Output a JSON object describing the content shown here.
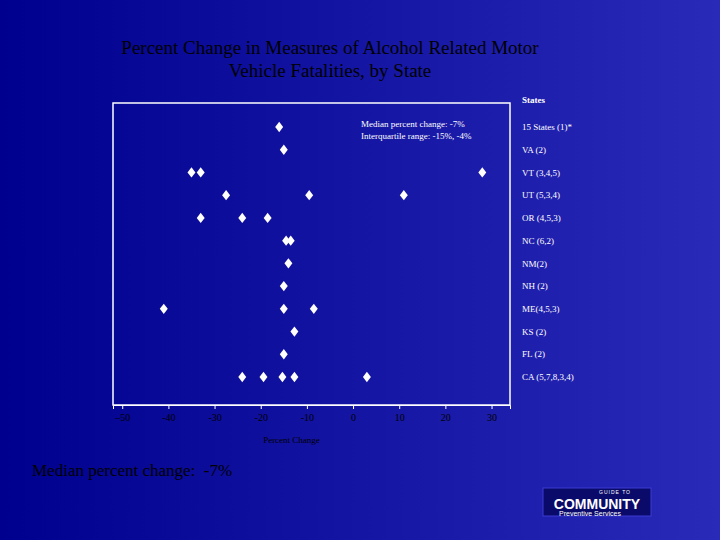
{
  "chart_data": {
    "type": "scatter",
    "title": [
      "Percent Change in Measures of Alcohol  Related Motor",
      "Vehicle Fatalities, by State"
    ],
    "x_label": "Percent Change",
    "legend_title": "States",
    "categories": [
      "15 States (1)*",
      "VA (2)",
      "VT (3,4,5)",
      "UT (5,3,4)",
      "OR (4,5,3)",
      "NC (6,2)",
      "NM(2)",
      "NH (2)",
      "ME(4,5,3)",
      "KS (2)",
      "FL (2)",
      "CA (5,7,8,3,4)"
    ],
    "values": [
      [
        -16
      ],
      [
        -15
      ],
      [
        -35,
        -33,
        28
      ],
      [
        -27.5,
        -9.5,
        11
      ],
      [
        -33,
        -24,
        -18.5
      ],
      [
        -14.5,
        -13.5
      ],
      [
        -14
      ],
      [
        -15
      ],
      [
        -41,
        -15,
        -8.5
      ],
      [
        -12.7
      ],
      [
        -15
      ],
      [
        -24,
        -19.4,
        -15.3,
        -12.7,
        3
      ]
    ],
    "color": "#ffffff",
    "marker": "diamond",
    "xlim": [
      -52,
      34
    ],
    "xticks": [
      {
        "value": -50,
        "label": "–50"
      },
      -40,
      -30,
      -20,
      -10,
      0,
      10,
      20,
      30
    ],
    "annotations": [
      "Median percent change: -7%",
      "Interquartile range: -15%, -4%"
    ],
    "footer": "Median percent change:  -7%",
    "logo": [
      "GUIDE TO",
      "COMMUNITY",
      "Preventive Services"
    ]
  }
}
